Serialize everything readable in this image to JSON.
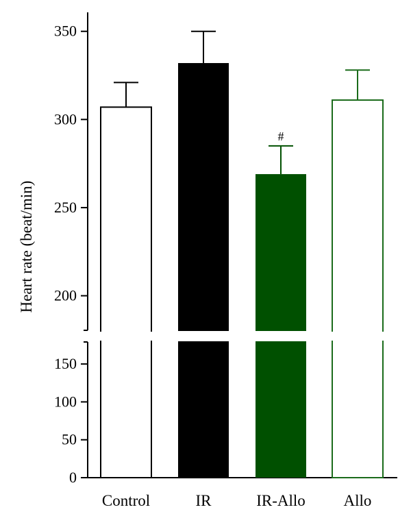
{
  "chart_data": {
    "type": "bar",
    "title": "",
    "xlabel": "",
    "ylabel": "Heart rate (beat/min)",
    "categories": [
      "Control",
      "IR",
      "IR-Allo",
      "Allo"
    ],
    "values": [
      307,
      332,
      269,
      311
    ],
    "errors": [
      14,
      18,
      16,
      17
    ],
    "annotations": [
      "",
      "",
      "#",
      ""
    ],
    "bar_colors": [
      "#ffffff",
      "#000000",
      "#005000",
      "#ffffff"
    ],
    "bar_edge_colors": [
      "#000000",
      "#000000",
      "#005000",
      "#1a6b1a"
    ],
    "broken_axis": true,
    "y_lower_range": [
      0,
      180
    ],
    "y_upper_range": [
      180,
      360
    ],
    "y_lower_ticks": [
      0,
      50,
      100,
      150
    ],
    "y_upper_ticks": [
      200,
      250,
      300,
      350
    ],
    "grid": false,
    "legend": "none"
  }
}
